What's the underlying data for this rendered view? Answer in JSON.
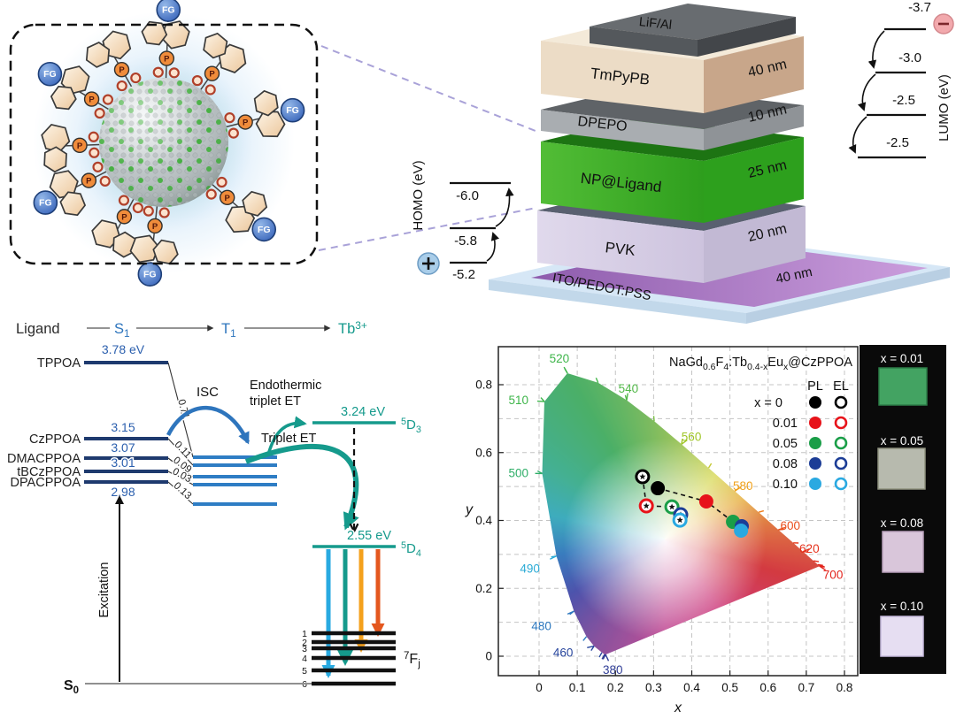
{
  "nanoparticle_panel": {
    "fg_label": "FG",
    "p_label": "P",
    "core_colors": {
      "sphere": "#b3bbbd",
      "dopant_green": "#3fae3a",
      "glow_blue": "#a9cfe8"
    }
  },
  "device_panel": {
    "layers": [
      {
        "name": "LiF/Al",
        "thickness": "",
        "front": "#54585c",
        "side": "#43464a",
        "top": "#686c70"
      },
      {
        "name": "TmPyPB",
        "thickness": "40 nm",
        "front": "#ecdcc6",
        "side": "#c8a68a",
        "top": "#f4ead9"
      },
      {
        "name": "DPEPO",
        "thickness": "10 nm",
        "front": "#a9adb1",
        "side": "#8f9397",
        "top": "#5f6367"
      },
      {
        "name": "NP@Ligand",
        "thickness": "25 nm",
        "front": "#46b42c",
        "side": "#2da01d",
        "top": "#1d7413"
      },
      {
        "name": "PVK",
        "thickness": "20 nm",
        "front": "#d9d2e6",
        "side": "#c2b9d4",
        "top": "#596070"
      },
      {
        "name": "ITO/PEDOT:PSS",
        "thickness": "40 nm",
        "front": "#d6e7f6",
        "side": "#b9cfe3",
        "top": "#9a66b5"
      }
    ],
    "lumo": {
      "axis_label": "LUMO (eV)",
      "levels": [
        "-3.7",
        "-3.0",
        "-2.5",
        "-2.5"
      ],
      "carrier_symbol": "−",
      "carrier_color": "#f2a9ad"
    },
    "homo": {
      "axis_label": "HOMO (eV)",
      "levels": [
        "-6.0",
        "-5.8",
        "-5.2"
      ],
      "carrier_symbol": "+",
      "carrier_color": "#a9cde9"
    }
  },
  "energy_panel": {
    "header": {
      "ligand": "Ligand",
      "s1": [
        {
          "t": "S"
        },
        {
          "t": "1",
          "sub": true
        }
      ],
      "t1": [
        {
          "t": "T"
        },
        {
          "t": "1",
          "sub": true
        }
      ],
      "tb": [
        {
          "t": "Tb"
        },
        {
          "t": "3+",
          "sup": true
        }
      ]
    },
    "s1_levels": [
      {
        "name": "TPPOA",
        "energy": "3.78 eV",
        "delta_est": "0.71"
      },
      {
        "name": "CzPPOA",
        "energy": "3.15",
        "delta_est": "0.11"
      },
      {
        "name": "DMACPPOA",
        "energy": "3.07",
        "delta_est": "0.09"
      },
      {
        "name": "tBCzPPOA",
        "energy": "3.01",
        "delta_est": "0.03"
      },
      {
        "name": "DPACPPOA",
        "energy": "2.98",
        "delta_est": "0.13"
      }
    ],
    "labels": {
      "isc": "ISC",
      "endothermic_line1": "Endothermic",
      "endothermic_line2": "triplet ET",
      "triplet_et": "Triplet ET",
      "excitation": "Excitation",
      "s0": [
        {
          "t": "S",
          "bold": true
        },
        {
          "t": "0",
          "sub": true,
          "bold": true
        }
      ]
    },
    "tb_levels": {
      "d3": {
        "energy": "3.24 eV",
        "label": [
          {
            "t": "5",
            "sup": true
          },
          {
            "t": "D"
          },
          {
            "t": "3",
            "sub": true
          }
        ]
      },
      "d4": {
        "energy": "2.55 eV",
        "label": [
          {
            "t": "5",
            "sup": true
          },
          {
            "t": "D"
          },
          {
            "t": "4",
            "sub": true
          }
        ]
      },
      "f_label": [
        {
          "t": "7",
          "sup": true
        },
        {
          "t": "F"
        },
        {
          "t": "j",
          "sub": true
        }
      ],
      "f_indices": [
        "1",
        "2",
        "3",
        "4",
        "5",
        "6"
      ]
    },
    "colors": {
      "s1_line": "#1e3a6e",
      "t1_line": "#2e7dc4",
      "value_text": "#2b5fae",
      "teal": "#159a8c",
      "blue": "#2e75bd",
      "emission": [
        "#29aae1",
        "#159a8c",
        "#f4a11d",
        "#e4571e"
      ]
    }
  },
  "chart_data": {
    "type": "scatter",
    "title_segments": [
      {
        "t": "NaGd"
      },
      {
        "t": "0.6",
        "sub": true
      },
      {
        "t": "F"
      },
      {
        "t": "4",
        "sub": true
      },
      {
        "t": ":Tb"
      },
      {
        "t": "0.4-x",
        "sub": true
      },
      {
        "t": "Eu"
      },
      {
        "t": "x",
        "sub": true
      },
      {
        "t": "@CzPPOA"
      }
    ],
    "xlabel": "x",
    "ylabel": "y",
    "xlim": [
      -0.107,
      0.835
    ],
    "ylim": [
      -0.057,
      0.912
    ],
    "xticks": [
      "0",
      "0.1",
      "0.2",
      "0.3",
      "0.4",
      "0.5",
      "0.6",
      "0.7",
      "0.8"
    ],
    "yticks": [
      "0",
      "0.2",
      "0.4",
      "0.6",
      "0.8"
    ],
    "grid": true,
    "legend": {
      "pl_header": "PL",
      "el_header": "EL",
      "rows": [
        {
          "label": "x = 0",
          "color": "#000000"
        },
        {
          "label": "0.01",
          "color": "#e7131a"
        },
        {
          "label": "0.05",
          "color": "#1a9e48"
        },
        {
          "label": "0.08",
          "color": "#1c3d96"
        },
        {
          "label": "0.10",
          "color": "#2aa9e1"
        }
      ]
    },
    "series": [
      {
        "name": "PL",
        "marker": "filled",
        "points": [
          [
            0.311,
            0.495
          ],
          [
            0.438,
            0.456
          ],
          [
            0.508,
            0.396
          ],
          [
            0.531,
            0.383
          ],
          [
            0.529,
            0.37
          ]
        ]
      },
      {
        "name": "EL",
        "marker": "open",
        "points": [
          [
            0.271,
            0.529
          ],
          [
            0.281,
            0.443
          ],
          [
            0.348,
            0.44
          ],
          [
            0.371,
            0.417
          ],
          [
            0.369,
            0.401
          ]
        ]
      }
    ],
    "locus": [
      [
        380,
        0.1741,
        0.005,
        "#2f3d96"
      ],
      [
        420,
        0.1714,
        0.0051,
        "#2f3d96"
      ],
      [
        440,
        0.1644,
        0.0109,
        "#29479e"
      ],
      [
        460,
        0.144,
        0.0297,
        "#29479e"
      ],
      [
        470,
        0.1241,
        0.0578,
        "#2d78bf"
      ],
      [
        480,
        0.0913,
        0.1327,
        "#2d78bf"
      ],
      [
        490,
        0.0454,
        0.295,
        "#2babd6"
      ],
      [
        500,
        0.0082,
        0.5384,
        "#2fae68"
      ],
      [
        510,
        0.0139,
        0.7502,
        "#3eb54a"
      ],
      [
        520,
        0.0743,
        0.8338,
        "#3eb54a"
      ],
      [
        530,
        0.1547,
        0.8059,
        "#44b64a"
      ],
      [
        540,
        0.2296,
        0.7543,
        "#52b848"
      ],
      [
        550,
        0.3016,
        0.6923,
        "#76bd43"
      ],
      [
        560,
        0.3731,
        0.6245,
        "#9fc527"
      ],
      [
        570,
        0.4441,
        0.5547,
        "#c4c832"
      ],
      [
        580,
        0.5125,
        0.4866,
        "#f0a019"
      ],
      [
        590,
        0.5752,
        0.4242,
        "#ef7c1a"
      ],
      [
        600,
        0.627,
        0.3725,
        "#e94e1b"
      ],
      [
        610,
        0.6658,
        0.334,
        "#e73a1c"
      ],
      [
        620,
        0.6915,
        0.3083,
        "#e6321c"
      ],
      [
        640,
        0.719,
        0.2809,
        "#e42a1c"
      ],
      [
        660,
        0.73,
        0.27,
        "#e3241c"
      ],
      [
        680,
        0.7334,
        0.2666,
        "#e3241c"
      ],
      [
        700,
        0.7347,
        0.2653,
        "#e3241c"
      ]
    ],
    "wavelength_labels": [
      {
        "text": "380",
        "anchor": [
          0.1741,
          0.005
        ],
        "pos": [
          0.193,
          -0.04
        ],
        "color": "#2f3d96"
      },
      {
        "text": "460",
        "anchor": [
          0.144,
          0.0297
        ],
        "pos": [
          0.063,
          0.01
        ],
        "color": "#29479e"
      },
      {
        "text": "480",
        "anchor": [
          0.0913,
          0.1327
        ],
        "pos": [
          0.006,
          0.089
        ],
        "color": "#2d78bf"
      },
      {
        "text": "490",
        "anchor": [
          0.0454,
          0.295
        ],
        "pos": [
          -0.024,
          0.258
        ],
        "color": "#2babd6"
      },
      {
        "text": "500",
        "anchor": [
          0.0082,
          0.5384
        ],
        "pos": [
          -0.054,
          0.539
        ],
        "color": "#2fae68"
      },
      {
        "text": "510",
        "anchor": [
          0.0139,
          0.7502
        ],
        "pos": [
          -0.054,
          0.755
        ],
        "color": "#3eb54a"
      },
      {
        "text": "520",
        "anchor": [
          0.0743,
          0.8338
        ],
        "pos": [
          0.053,
          0.877
        ],
        "color": "#3eb54a"
      },
      {
        "text": "540",
        "anchor": [
          0.2296,
          0.7543
        ],
        "pos": [
          0.234,
          0.788
        ],
        "color": "#52b848"
      },
      {
        "text": "560",
        "anchor": [
          0.3731,
          0.6245
        ],
        "pos": [
          0.399,
          0.646
        ],
        "color": "#9fc527"
      },
      {
        "text": "580",
        "anchor": [
          0.5125,
          0.4866
        ],
        "pos": [
          0.534,
          0.502
        ],
        "color": "#f0a019"
      },
      {
        "text": "600",
        "anchor": [
          0.627,
          0.3725
        ],
        "pos": [
          0.658,
          0.385
        ],
        "color": "#e94e1b"
      },
      {
        "text": "620",
        "anchor": [
          0.6915,
          0.3083
        ],
        "pos": [
          0.708,
          0.316
        ],
        "color": "#e6321c"
      },
      {
        "text": "700",
        "anchor": [
          0.7347,
          0.2653
        ],
        "pos": [
          0.77,
          0.24
        ],
        "color": "#e3241c"
      }
    ]
  },
  "photo_panel": {
    "items": [
      {
        "label": "x = 0.01",
        "color": "#43a362",
        "edge": "#2c7d48"
      },
      {
        "label": "x = 0.05",
        "color": "#b7baae",
        "edge": "#8f927f"
      },
      {
        "label": "x = 0.08",
        "color": "#d9c6da",
        "edge": "#b79fba"
      },
      {
        "label": "x = 0.10",
        "color": "#e6def2",
        "edge": "#c6badd"
      }
    ]
  }
}
